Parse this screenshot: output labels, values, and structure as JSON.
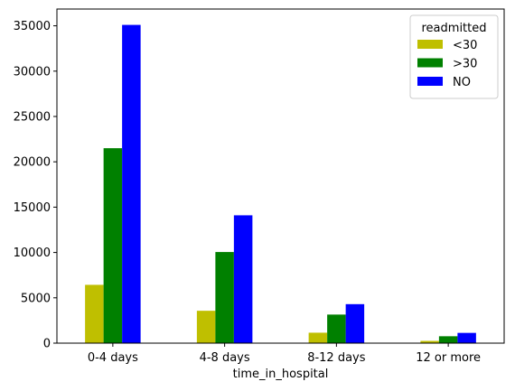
{
  "chart_data": {
    "type": "bar",
    "categories": [
      "0-4 days",
      "4-8 days",
      "8-12 days",
      "12 or more"
    ],
    "series": [
      {
        "name": "<30",
        "color": "#bfbf00",
        "values": [
          6430,
          3570,
          1150,
          250
        ]
      },
      {
        "name": ">30",
        "color": "#008000",
        "values": [
          21500,
          10050,
          3150,
          760
        ]
      },
      {
        "name": "NO",
        "color": "#0000ff",
        "values": [
          35100,
          14100,
          4300,
          1130
        ]
      }
    ],
    "xlabel": "time_in_hospital",
    "ylabel": "",
    "ylim": [
      0,
      36850
    ],
    "yticks": [
      0,
      5000,
      10000,
      15000,
      20000,
      25000,
      30000,
      35000
    ],
    "legend_title": "readmitted",
    "legend_position": "top-right",
    "grid": false
  }
}
